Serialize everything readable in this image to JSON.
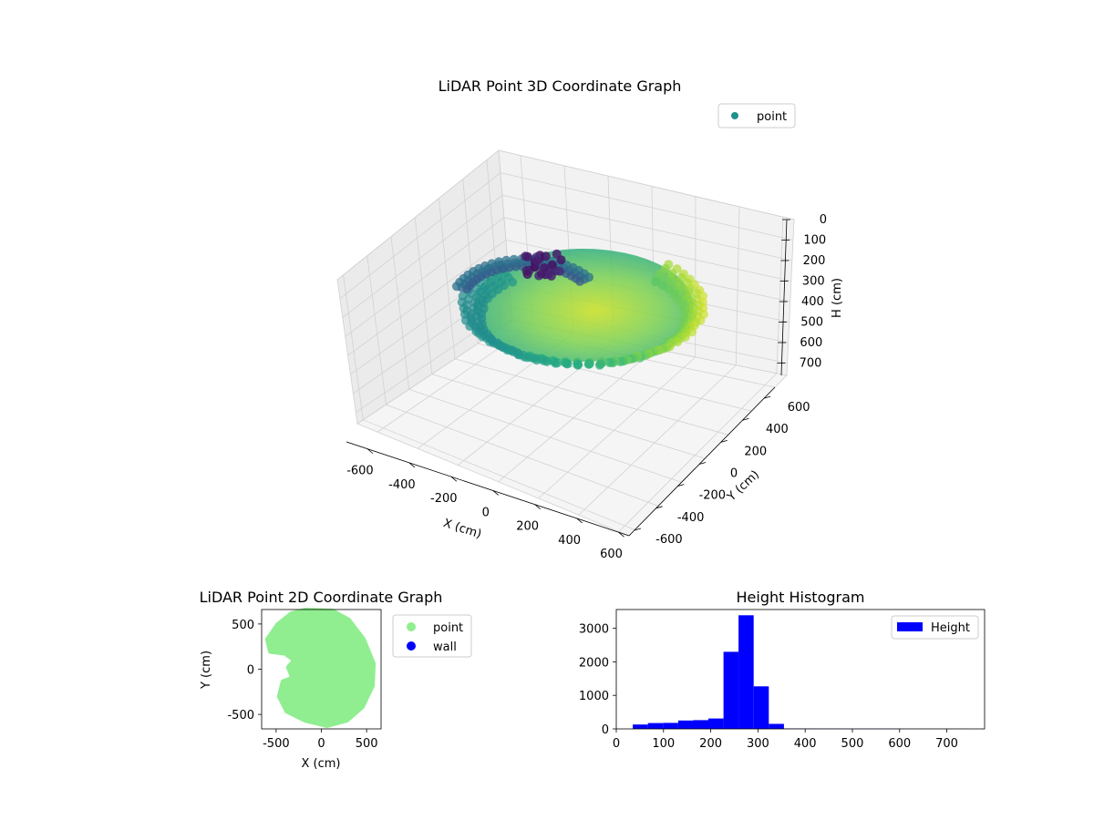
{
  "chart_data": [
    {
      "type": "scatter",
      "projection": "3d",
      "title": "LiDAR Point 3D Coordinate Graph",
      "xlabel": "X (cm)",
      "ylabel": "Y (cm)",
      "zlabel": "H (cm)",
      "xlim": [
        -700,
        650
      ],
      "ylim": [
        -650,
        700
      ],
      "zlim": [
        0,
        760
      ],
      "z_inverted": true,
      "xticks": [
        -600,
        -400,
        -200,
        0,
        200,
        400,
        600
      ],
      "yticks": [
        -600,
        -400,
        -200,
        0,
        200,
        400,
        600
      ],
      "zticks": [
        0,
        100,
        200,
        300,
        400,
        500,
        600,
        700
      ],
      "colormap": "viridis",
      "grid": true,
      "legend": {
        "placement": "top-right",
        "entries": [
          {
            "label": "point",
            "color": "#21918c"
          }
        ]
      },
      "series": [
        {
          "name": "point",
          "description": "Cloud of points forming a ring/bowl around the scanner; color encodes height.",
          "ring_radius_cm": 600,
          "typical_height_cm": 260,
          "max_height_cm": 700
        }
      ]
    },
    {
      "type": "scatter",
      "title": "LiDAR Point 2D Coordinate Graph",
      "xlabel": "X (cm)",
      "ylabel": "Y (cm)",
      "xlim": [
        -660,
        660
      ],
      "ylim": [
        -660,
        660
      ],
      "xticks": [
        -500,
        0,
        500
      ],
      "yticks": [
        -500,
        0,
        500
      ],
      "legend": {
        "placement": "outside-right",
        "entries": [
          {
            "label": "point",
            "color": "#90ee90"
          },
          {
            "label": "wall",
            "color": "#0000ff"
          }
        ]
      },
      "series": [
        {
          "name": "point",
          "color": "#90ee90",
          "outline": [
            [
              -180,
              650
            ],
            [
              120,
              640
            ],
            [
              300,
              540
            ],
            [
              460,
              330
            ],
            [
              570,
              60
            ],
            [
              560,
              -180
            ],
            [
              450,
              -410
            ],
            [
              280,
              -560
            ],
            [
              60,
              -620
            ],
            [
              -180,
              -560
            ],
            [
              -380,
              -460
            ],
            [
              -460,
              -300
            ],
            [
              -420,
              -140
            ],
            [
              -310,
              -100
            ],
            [
              -360,
              20
            ],
            [
              -290,
              100
            ],
            [
              -400,
              180
            ],
            [
              -560,
              200
            ],
            [
              -590,
              330
            ],
            [
              -480,
              490
            ],
            [
              -330,
              610
            ]
          ]
        },
        {
          "name": "wall",
          "color": "#0000ff",
          "points": []
        }
      ]
    },
    {
      "type": "bar",
      "title": "Height Histogram",
      "xlabel": "",
      "ylabel": "",
      "xlim": [
        0,
        780
      ],
      "ylim": [
        0,
        3560
      ],
      "xticks": [
        0,
        100,
        200,
        300,
        400,
        500,
        600,
        700
      ],
      "yticks": [
        0,
        1000,
        2000,
        3000
      ],
      "legend": {
        "placement": "top-right",
        "entries": [
          {
            "label": "Height",
            "color": "#0000ff"
          }
        ]
      },
      "series": [
        {
          "name": "Height",
          "color": "#0000ff",
          "bin_edges": [
            35,
            67,
            99,
            131,
            163,
            195,
            227,
            259,
            291,
            323,
            355,
            387,
            419,
            451,
            483,
            515,
            547,
            579,
            611,
            643,
            675,
            707,
            739
          ],
          "values": [
            130,
            175,
            180,
            250,
            260,
            310,
            2300,
            3390,
            1270,
            150,
            10,
            10,
            8,
            8,
            6,
            6,
            5,
            5,
            4,
            4,
            4,
            3
          ]
        }
      ]
    }
  ]
}
